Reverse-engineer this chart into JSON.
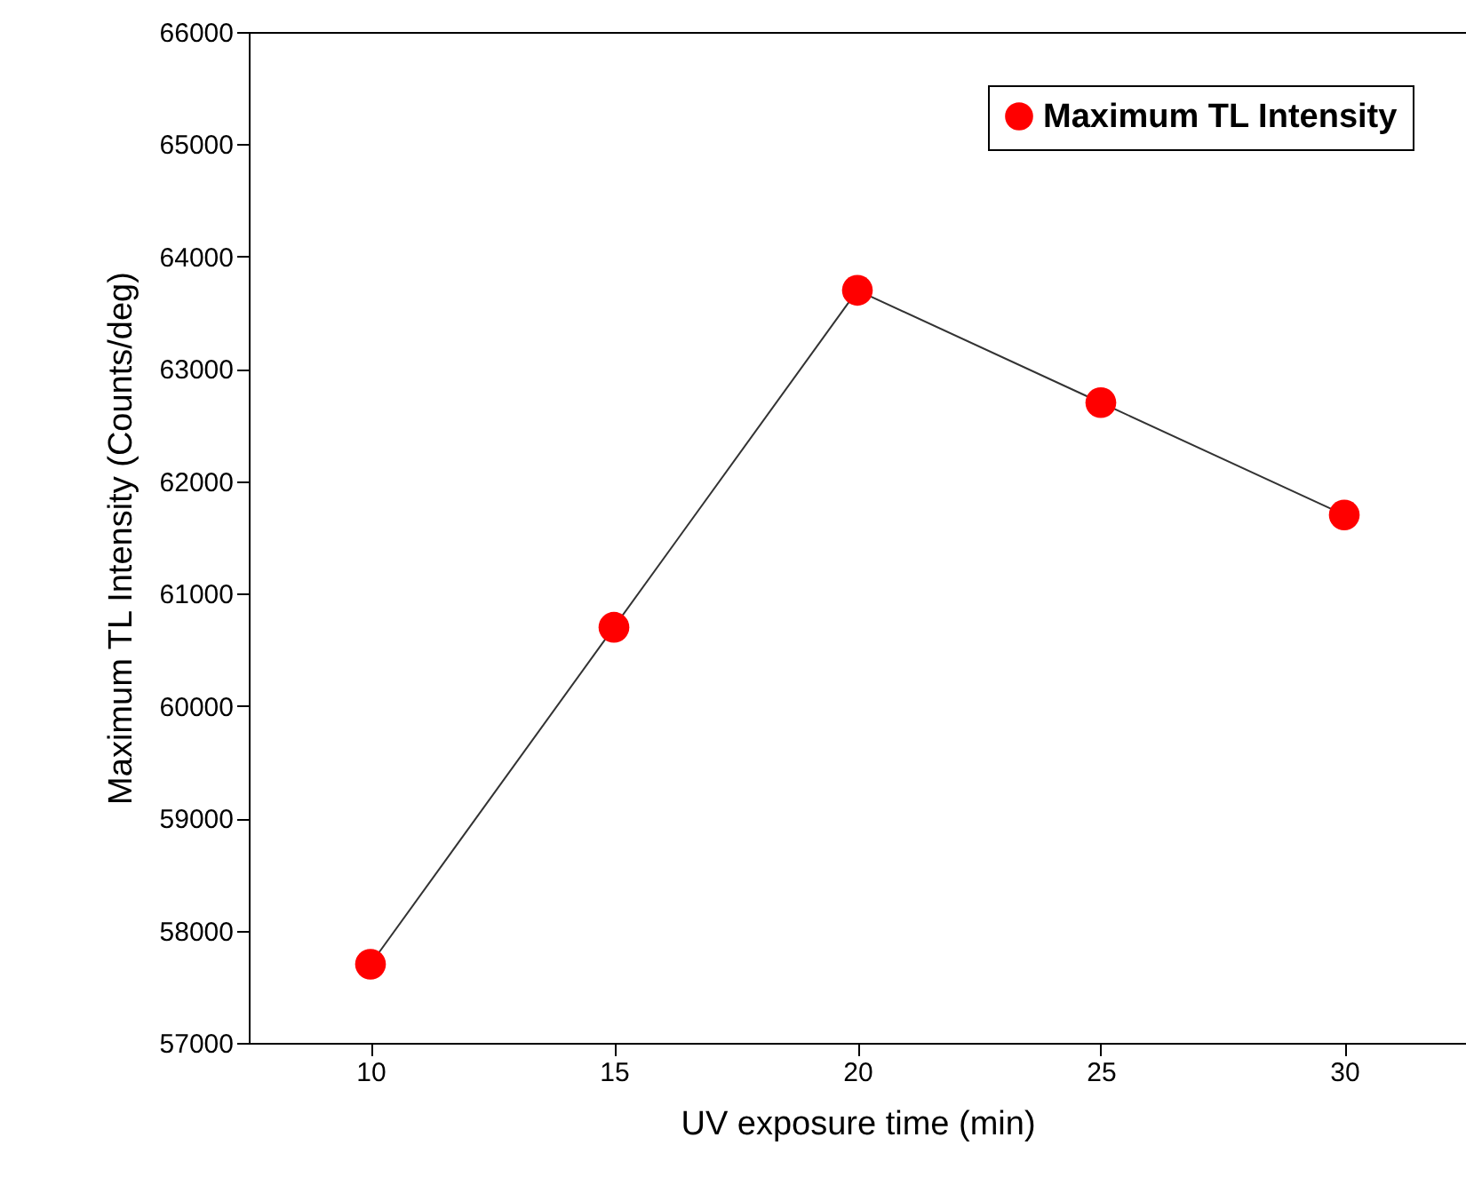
{
  "chart_data": {
    "type": "line",
    "xlabel": "UV exposure time (min)",
    "ylabel": "Maximum TL Intensity (Counts/deg)",
    "x": [
      10,
      15,
      20,
      25,
      30
    ],
    "series": [
      {
        "name": "Maximum TL Intensity",
        "color": "#ff0000",
        "values": [
          57700,
          60700,
          63700,
          62700,
          61700
        ]
      }
    ],
    "xlim": [
      7.5,
      32.5
    ],
    "xticks": [
      10,
      15,
      20,
      25,
      30
    ],
    "ylim": [
      57000,
      66000
    ],
    "yticks": [
      57000,
      58000,
      59000,
      60000,
      61000,
      62000,
      63000,
      64000,
      65000,
      66000
    ],
    "marker": "circle",
    "line_style": "solid",
    "legend": "top right",
    "grid": false
  }
}
